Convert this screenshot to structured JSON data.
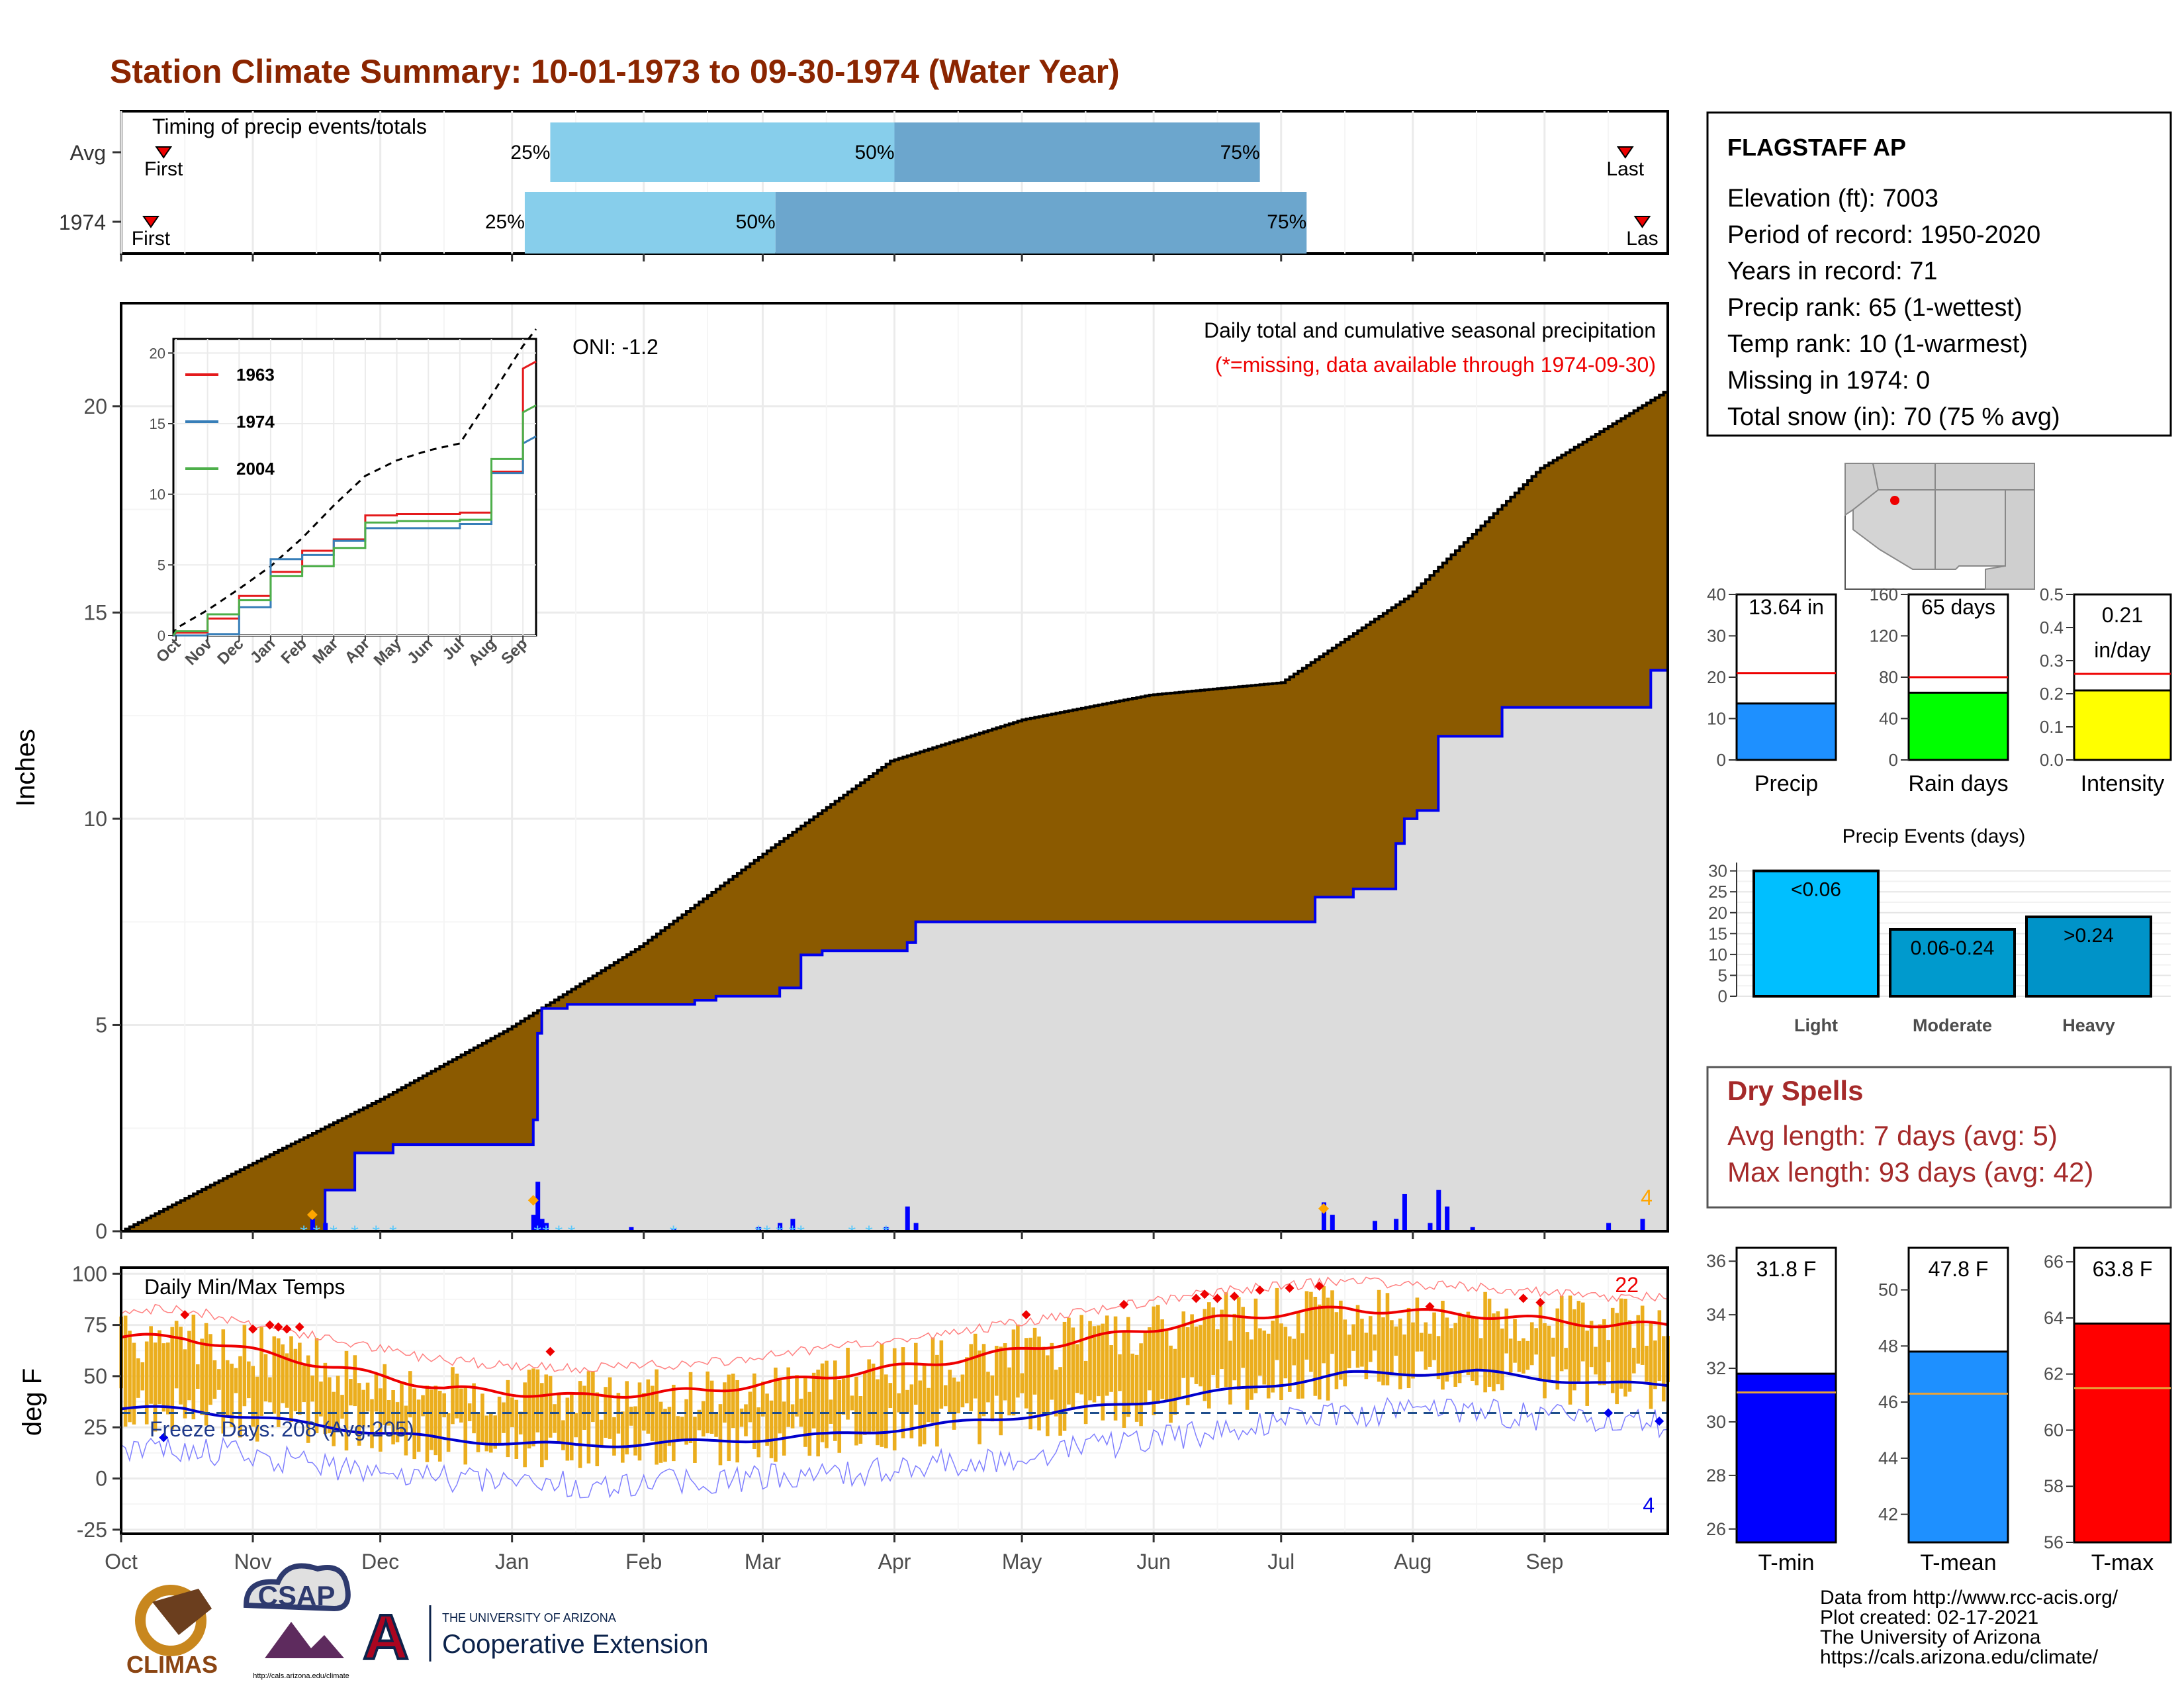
{
  "title": "Station Climate Summary: 10-01-1973 to 09-30-1974 (Water Year)",
  "colors": {
    "title": "#8B2500",
    "cumulative_avg": "#8B5A00",
    "cumulative_obs": "#DCDCDC",
    "obs_line": "#0000EE",
    "timing_light": "#87CEEB",
    "timing_dark": "#6CA6CD",
    "temp_bar": "#EBAE1E",
    "dry_spell": "#A52A2A"
  },
  "timing": {
    "title": "Timing of precip events/totals",
    "rows": [
      {
        "label": "Avg",
        "first": "First",
        "last": "Last",
        "p25": "25%",
        "p50": "50%",
        "p75": "75%",
        "first_day": 10,
        "q25_day": 101,
        "q50_day": 182,
        "q75_day": 268,
        "last_day": 354
      },
      {
        "label": "1974",
        "first": "First",
        "last": "Las",
        "p25": "25%",
        "p50": "50%",
        "p75": "75%",
        "first_day": 7,
        "q25_day": 95,
        "q50_day": 154,
        "q75_day": 279,
        "last_day": 358
      }
    ]
  },
  "month_labels": [
    "Oct",
    "Nov",
    "Dec",
    "Jan",
    "Feb",
    "Mar",
    "Apr",
    "May",
    "Jun",
    "Jul",
    "Aug",
    "Sep"
  ],
  "precip": {
    "ylabel": "Inches",
    "yticks": [
      "0",
      "5",
      "10",
      "15",
      "20"
    ],
    "oni": "ONI: -1.2",
    "caption1": "Daily total and cumulative seasonal precipitation",
    "caption2": "(*=missing, data available through 1974-09-30)",
    "corner_count": "4"
  },
  "inset": {
    "yticks": [
      "0",
      "5",
      "10",
      "15",
      "20"
    ],
    "xticks": [
      "Oct",
      "Nov",
      "Dec",
      "Jan",
      "Feb",
      "Mar",
      "Apr",
      "May",
      "Jun",
      "Jul",
      "Aug",
      "Sep"
    ],
    "legend": [
      {
        "name": "1963",
        "color": "#E41A1C"
      },
      {
        "name": "1974",
        "color": "#377EB8"
      },
      {
        "name": "2004",
        "color": "#4DAF4A"
      }
    ]
  },
  "temps": {
    "title": "Daily Min/Max Temps",
    "ylabel": "deg F",
    "yticks": [
      "-25",
      "0",
      "25",
      "50",
      "75",
      "100"
    ],
    "freeze": "Freeze Days: 208 (Avg:205)",
    "max_count": "22",
    "min_count": "4"
  },
  "station": {
    "name": "FLAGSTAFF AP",
    "lines": [
      "Elevation (ft): 7003",
      "Period of record: 1950-2020",
      "Years in record: 71",
      "Precip rank: 65 (1-wettest)",
      "Temp rank: 10 (1-warmest)",
      "Missing in 1974: 0",
      "Total snow (in): 70 (75 % avg)"
    ]
  },
  "mini_bars": [
    {
      "id": "precip",
      "label": "Precip",
      "value_text": "13.64 in",
      "value": 13.64,
      "avg": 21,
      "ymax": 40,
      "yticks": [
        "0",
        "10",
        "20",
        "30",
        "40"
      ],
      "tick_vals": [
        0,
        10,
        20,
        30,
        40
      ],
      "color": "#1E90FF"
    },
    {
      "id": "raindays",
      "label": "Rain days",
      "value_text": "65 days",
      "value": 65,
      "avg": 80,
      "ymax": 160,
      "yticks": [
        "0",
        "40",
        "80",
        "120",
        "160"
      ],
      "tick_vals": [
        0,
        40,
        80,
        120,
        160
      ],
      "color": "#00FF00"
    },
    {
      "id": "intensity",
      "label": "Intensity",
      "value_text": "0.21",
      "value_text2": "in/day",
      "value": 0.21,
      "avg": 0.26,
      "ymax": 0.5,
      "yticks": [
        "0.0",
        "0.1",
        "0.2",
        "0.3",
        "0.4",
        "0.5"
      ],
      "tick_vals": [
        0,
        0.1,
        0.2,
        0.3,
        0.4,
        0.5
      ],
      "color": "#FFFF00"
    }
  ],
  "events": {
    "title": "Precip Events (days)",
    "yticks": [
      "0",
      "5",
      "10",
      "15",
      "20",
      "25",
      "30"
    ],
    "categories": [
      "Light",
      "Moderate",
      "Heavy"
    ],
    "bar_labels": [
      "<0.06",
      "0.06-0.24",
      ">0.24"
    ],
    "values": [
      30,
      16,
      19
    ],
    "colors": [
      "#00BFFF",
      "#009ACD",
      "#0093C8"
    ]
  },
  "dry_spells": {
    "title": "Dry Spells",
    "avg_length": "Avg length: 7 days (avg: 5)",
    "max_length": "Max length: 93 days (avg: 42)"
  },
  "temp_bars": [
    {
      "id": "tmin",
      "label": "T-min",
      "value_text": "31.8 F",
      "value": 31.8,
      "avg": 31.1,
      "ymin": 25.5,
      "ymax": 36.5,
      "yticks": [
        "26",
        "28",
        "30",
        "32",
        "34",
        "36"
      ],
      "tick_vals": [
        26,
        28,
        30,
        32,
        34,
        36
      ],
      "color": "#0000FF"
    },
    {
      "id": "tmean",
      "label": "T-mean",
      "value_text": "47.8 F",
      "value": 47.8,
      "avg": 46.3,
      "ymin": 41,
      "ymax": 51.5,
      "yticks": [
        "42",
        "44",
        "46",
        "48",
        "50"
      ],
      "tick_vals": [
        42,
        44,
        46,
        48,
        50
      ],
      "color": "#1E90FF"
    },
    {
      "id": "tmax",
      "label": "T-max",
      "value_text": "63.8 F",
      "value": 63.8,
      "avg": 61.5,
      "ymin": 56,
      "ymax": 66.5,
      "yticks": [
        "56",
        "58",
        "60",
        "62",
        "64",
        "66"
      ],
      "tick_vals": [
        56,
        58,
        60,
        62,
        64,
        66
      ],
      "color": "#FF0000"
    }
  ],
  "footer": {
    "lines": [
      "Data from http://www.rcc-acis.org/",
      "Plot created: 02-17-2021",
      "The University of Arizona",
      "https://cals.arizona.edu/climate/"
    ],
    "logo_climas": "CLIMAS",
    "logo_csap": "CSAP",
    "logo_csap_url": "http://cals.arizona.edu/climate",
    "ua_line1": "THE UNIVERSITY OF ARIZONA",
    "ua_line2": "Cooperative Extension",
    "ua_letter": "A"
  },
  "chart_data": [
    {
      "type": "area",
      "title": "Daily total and cumulative seasonal precipitation",
      "ylabel": "Inches",
      "ylim": [
        0,
        22.5
      ],
      "x_domain": [
        "Oct",
        "Sep"
      ],
      "series": [
        {
          "name": "",
          "x_day": [
            0,
            30,
            61,
            91,
            122,
            153,
            181,
            212,
            242,
            273,
            303,
            334,
            364
          ],
          "values": [
            0,
            1.6,
            3.2,
            4.9,
            6.9,
            9.3,
            11.4,
            12.4,
            13.0,
            13.3,
            15.4,
            18.5,
            20.4
          ]
        },
        {
          "name": "",
          "x_day": [
            0,
            45,
            48,
            55,
            64,
            96,
            97,
            98,
            99,
            105,
            135,
            140,
            155,
            160,
            165,
            172,
            185,
            187,
            280,
            281,
            290,
            300,
            302,
            305,
            310,
            325,
            357,
            360,
            364
          ],
          "values": [
            0,
            0,
            1.0,
            1.9,
            2.1,
            2.1,
            2.7,
            4.8,
            5.4,
            5.5,
            5.6,
            5.7,
            5.9,
            6.7,
            6.8,
            6.8,
            7.0,
            7.5,
            7.5,
            8.1,
            8.3,
            9.4,
            10.0,
            10.2,
            12.0,
            12.7,
            12.7,
            13.6,
            13.64
          ]
        }
      ],
      "daily_precip_days": [
        45,
        48,
        97,
        98,
        99,
        100,
        120,
        130,
        150,
        155,
        158,
        180,
        185,
        187,
        283,
        285,
        295,
        300,
        302,
        308,
        310,
        312,
        318,
        350,
        358
      ],
      "daily_precip_in": [
        0.3,
        0.2,
        0.4,
        1.2,
        0.3,
        0.2,
        0.1,
        0.05,
        0.1,
        0.2,
        0.3,
        0.1,
        0.6,
        0.2,
        0.7,
        0.4,
        0.25,
        0.3,
        0.9,
        0.2,
        1.0,
        0.6,
        0.1,
        0.2,
        0.3
      ]
    },
    {
      "type": "line",
      "title": "",
      "ylim": [
        0,
        21
      ],
      "categories": [
        "Oct",
        "Nov",
        "Dec",
        "Jan",
        "Feb",
        "Mar",
        "Apr",
        "May",
        "Jun",
        "Jul",
        "Aug",
        "Sep"
      ],
      "series": [
        {
          "name": "",
          "values": [
            0.5,
            1.8,
            3.3,
            4.9,
            6.9,
            9.2,
            11.3,
            12.4,
            13.1,
            13.6,
            17.0,
            20.5
          ]
        },
        {
          "name": "1963",
          "values": [
            0.2,
            1.2,
            2.8,
            4.5,
            6.0,
            6.8,
            8.5,
            8.6,
            8.6,
            8.7,
            11.6,
            18.9
          ]
        },
        {
          "name": "1974",
          "values": [
            0,
            0.1,
            2.0,
            5.4,
            5.7,
            6.7,
            7.6,
            7.6,
            7.6,
            7.9,
            11.5,
            13.6
          ]
        },
        {
          "name": "2004",
          "values": [
            0.3,
            1.5,
            2.5,
            4.2,
            4.9,
            6.2,
            8.0,
            8.1,
            8.1,
            8.2,
            12.5,
            15.8
          ]
        }
      ]
    },
    {
      "type": "line",
      "title": "Daily Min/Max Temps",
      "ylabel": "deg F",
      "ylim": [
        -27,
        103
      ],
      "categories": [
        "Oct",
        "Nov",
        "Dec",
        "Jan",
        "Feb",
        "Mar",
        "Apr",
        "May",
        "Jun",
        "Jul",
        "Aug",
        "Sep"
      ],
      "series": [
        {
          "name": "",
          "values": [
            69,
            56,
            44,
            40,
            43,
            50,
            58,
            68,
            78,
            83,
            80,
            75
          ]
        },
        {
          "name": "",
          "values": [
            34,
            26,
            19,
            16,
            18,
            21,
            27,
            34,
            42,
            51,
            52,
            46
          ]
        }
      ],
      "freeze_line": 32
    }
  ]
}
